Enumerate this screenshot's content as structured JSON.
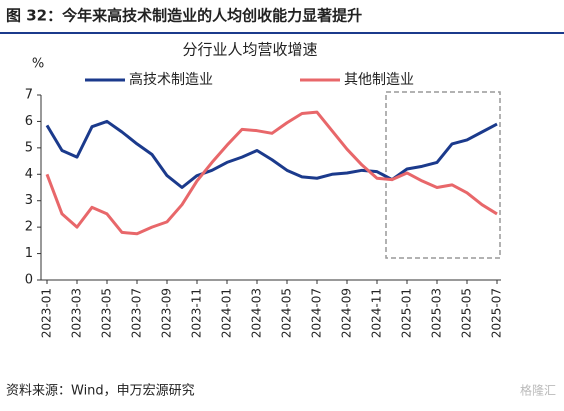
{
  "header": {
    "title": "图 32：今年来高技术制造业的人均创收能力显著提升"
  },
  "chart_data": {
    "type": "line",
    "title": "分行业人均营收增速",
    "y_unit": "%",
    "categories": [
      "2023-01",
      null,
      "2023-03",
      null,
      "2023-05",
      null,
      "2023-07",
      null,
      "2023-09",
      null,
      "2023-11",
      null,
      "2024-01",
      null,
      "2024-03",
      null,
      "2024-05",
      null,
      "2024-07",
      null,
      "2024-09",
      null,
      "2024-11",
      null,
      "2025-01",
      null,
      "2025-03",
      null,
      "2025-05",
      null,
      "2025-07"
    ],
    "series": [
      {
        "name": "高技术制造业",
        "color": "#1b3a8c",
        "values": [
          5.85,
          4.9,
          4.65,
          5.8,
          6.0,
          5.6,
          5.15,
          4.75,
          3.95,
          3.5,
          3.95,
          4.15,
          4.45,
          4.65,
          4.9,
          4.55,
          4.15,
          3.9,
          3.85,
          4.0,
          4.05,
          4.15,
          4.1,
          3.8,
          4.2,
          4.3,
          4.45,
          5.15,
          5.3,
          5.6,
          5.9
        ]
      },
      {
        "name": "其他制造业",
        "color": "#e8676a",
        "values": [
          4.0,
          2.5,
          2.0,
          2.75,
          2.5,
          1.8,
          1.75,
          2.0,
          2.2,
          2.85,
          3.75,
          4.45,
          5.1,
          5.7,
          5.65,
          5.55,
          5.95,
          6.3,
          6.35,
          5.65,
          4.95,
          4.35,
          3.85,
          3.8,
          4.05,
          3.75,
          3.5,
          3.6,
          3.3,
          2.85,
          2.5
        ]
      }
    ],
    "ylim": [
      0,
      7
    ],
    "yticks": [
      0,
      1,
      2,
      3,
      4,
      5,
      6,
      7
    ],
    "grid": false
  },
  "footer": {
    "source": "资料来源：Wind，申万宏源研究",
    "watermark": "格隆汇"
  }
}
